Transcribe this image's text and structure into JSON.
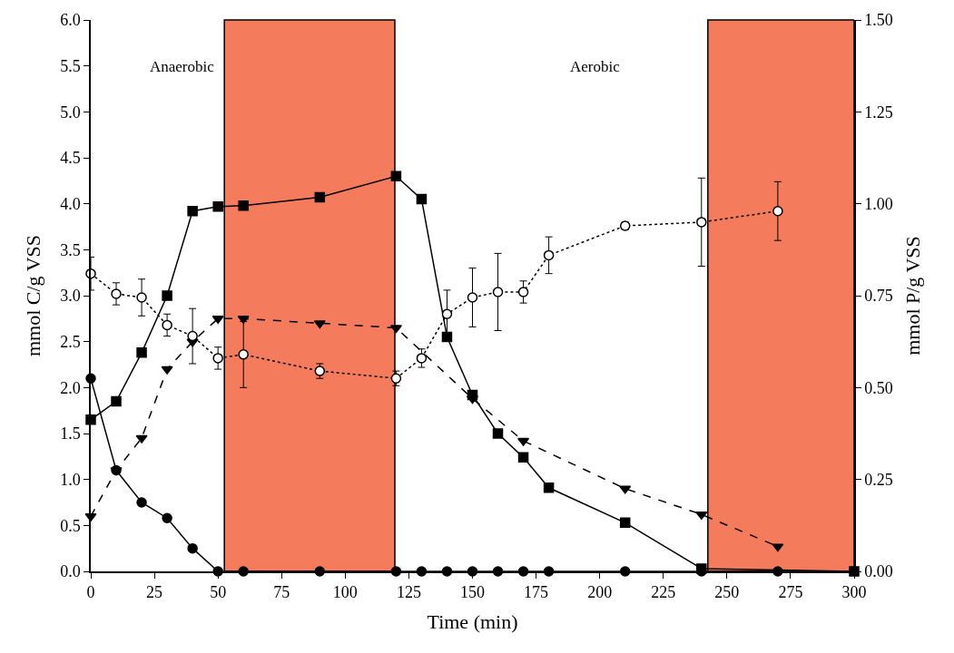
{
  "chart_data": {
    "type": "line",
    "xlabel": "Time (min)",
    "ylabel": "mmol C/g VSS",
    "y2label": "mmol P/g VSS",
    "xlim": [
      0,
      300
    ],
    "xticks": [
      0,
      25,
      50,
      75,
      100,
      125,
      150,
      175,
      200,
      225,
      250,
      275,
      300
    ],
    "ylim": [
      0,
      6
    ],
    "yticks": [
      {
        "value": 0,
        "label": "0.0"
      },
      {
        "value": 0.5,
        "label": "0.5"
      },
      {
        "value": 1,
        "label": "1.0"
      },
      {
        "value": 1.5,
        "label": "1.5"
      },
      {
        "value": 2,
        "label": "2.0"
      },
      {
        "value": 2.5,
        "label": "2.5"
      },
      {
        "value": 3,
        "label": "3.0"
      },
      {
        "value": 3.5,
        "label": "3.5"
      },
      {
        "value": 4,
        "label": "4.0"
      },
      {
        "value": 4.5,
        "label": "4.5"
      },
      {
        "value": 5,
        "label": "5.0"
      },
      {
        "value": 5.5,
        "label": "5.5"
      },
      {
        "value": 6,
        "label": "6.0"
      }
    ],
    "y2lim": [
      0,
      1.5
    ],
    "y2ticks": [
      {
        "value": 0,
        "label": "0.00"
      },
      0.25,
      {
        "value": 0.5,
        "label": "0.50"
      },
      0.75,
      {
        "value": 1,
        "label": "1.00"
      },
      1.25,
      {
        "value": 1.5,
        "label": "1.50"
      }
    ],
    "series": [
      {
        "color": "#000000",
        "marker": "square",
        "line_style": "solid",
        "x": [
          0,
          10,
          20,
          30,
          40,
          50,
          60,
          90,
          120,
          130,
          140,
          150,
          160,
          170,
          180,
          210,
          240,
          300
        ],
        "values": [
          1.65,
          1.85,
          2.38,
          3.0,
          3.92,
          3.97,
          3.98,
          4.07,
          4.3,
          4.05,
          2.55,
          1.92,
          1.5,
          1.24,
          0.91,
          0.53,
          0.03,
          0
        ]
      },
      {
        "color": "#000000",
        "marker": "triangle",
        "line_style": "dashed",
        "x": [
          0,
          10,
          20,
          30,
          40,
          50,
          60,
          90,
          120,
          150,
          170,
          210,
          240,
          270
        ],
        "values": [
          0.6,
          1.1,
          1.45,
          2.2,
          2.5,
          2.75,
          2.75,
          2.7,
          2.65,
          1.88,
          1.42,
          0.9,
          0.62,
          0.27
        ]
      },
      {
        "color": "#000000",
        "marker": "circle",
        "line_style": "solid",
        "x": [
          0,
          10,
          20,
          30,
          40,
          50,
          60,
          90,
          120,
          130,
          140,
          150,
          160,
          170,
          180,
          210,
          240,
          270
        ],
        "values": [
          2.1,
          1.1,
          0.75,
          0.58,
          0.25,
          0,
          0,
          0,
          0,
          0,
          0,
          0,
          0,
          0,
          0,
          0,
          0,
          0
        ]
      },
      {
        "color": "#000000",
        "marker": "circle-open",
        "line_style": "dotted",
        "axis": "y2",
        "x": [
          0,
          10,
          20,
          30,
          40,
          50,
          60,
          90,
          120,
          130,
          140,
          150,
          160,
          170,
          180,
          210,
          240,
          270
        ],
        "values": [
          0.81,
          0.755,
          0.745,
          0.67,
          0.64,
          0.58,
          0.59,
          0.545,
          0.525,
          0.58,
          0.7,
          0.745,
          0.76,
          0.76,
          0.86,
          0.94,
          0.95,
          0.98
        ],
        "errors": [
          0.045,
          0.03,
          0.05,
          0.03,
          0.075,
          0.03,
          0.09,
          0.02,
          0.02,
          0.025,
          0.065,
          0.08,
          0.105,
          0.03,
          0.05,
          0.01,
          0.12,
          0.08
        ]
      }
    ],
    "bands": [
      {
        "axis": "x",
        "from": 52.5,
        "to": 119.5,
        "color": "#f47c5c"
      },
      {
        "axis": "x",
        "from": 242.5,
        "to": 300,
        "color": "#f47c5c"
      }
    ],
    "annotations": [
      "Anaerobic",
      "Aerobic"
    ]
  }
}
